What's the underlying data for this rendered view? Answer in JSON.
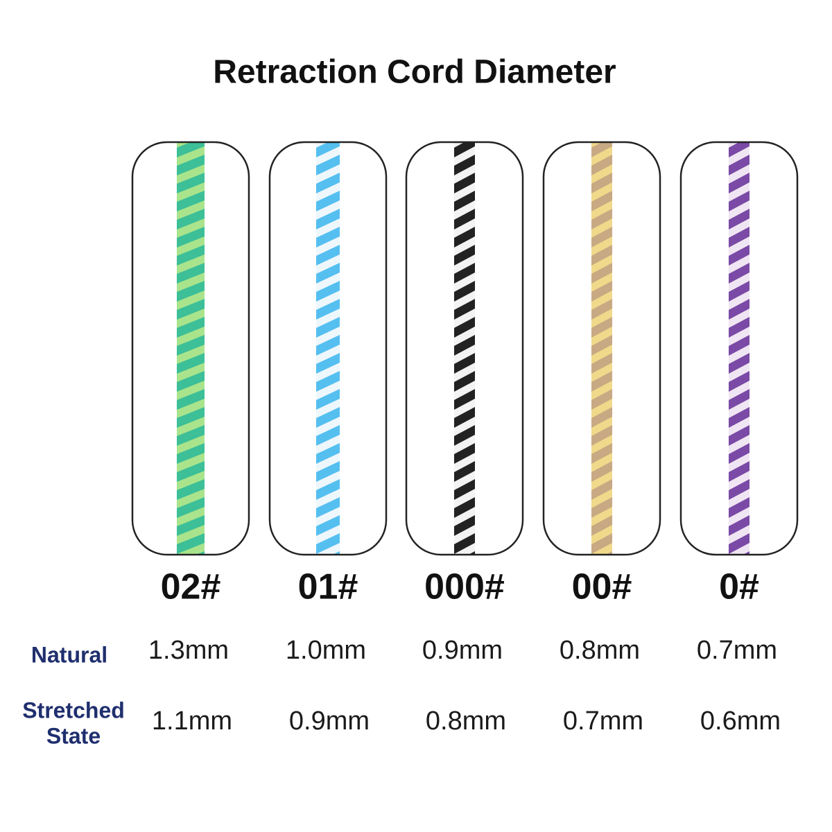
{
  "header": {
    "title": "Retraction Cord Diameter"
  },
  "row_labels": {
    "natural": "Natural",
    "stretched": [
      "Stretched",
      "State"
    ]
  },
  "cords": [
    {
      "label": "02#",
      "natural": "1.3mm",
      "stretched": "1.1mm"
    },
    {
      "label": "01#",
      "natural": "1.0mm",
      "stretched": "0.9mm"
    },
    {
      "label": "000#",
      "natural": "0.9mm",
      "stretched": "0.8mm"
    },
    {
      "label": "00#",
      "natural": "0.8mm",
      "stretched": "0.7mm"
    },
    {
      "label": "0#",
      "natural": "0.7mm",
      "stretched": "0.6mm"
    }
  ]
}
